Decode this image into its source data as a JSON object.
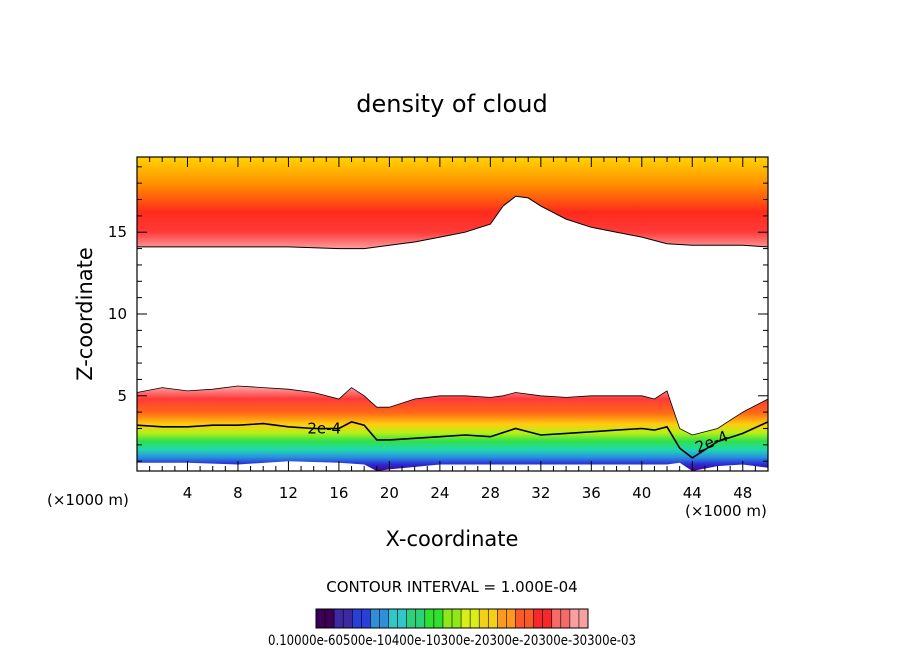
{
  "chart_data": {
    "type": "contour",
    "title": "density of cloud",
    "xlabel": "X-coordinate",
    "ylabel": "Z-coordinate",
    "x_unit_left": "(×1000 m)",
    "x_unit_right": "(×1000 m)",
    "xlim": [
      0,
      50
    ],
    "ylim": [
      0.4,
      19.6
    ],
    "x_ticks": [
      4,
      8,
      12,
      16,
      20,
      24,
      28,
      32,
      36,
      40,
      44,
      48
    ],
    "y_ticks": [
      5,
      10,
      15
    ],
    "contour_label": "2e-4",
    "contour_interval_text": "CONTOUR INTERVAL = 1.000E-04",
    "colorbar_labels_text": "0.10000e-60500e-10400e-10300e-20300e-20300e-30300e-03",
    "top_layer_lower_boundary": {
      "x": [
        0,
        4,
        8,
        12,
        16,
        18,
        20,
        22,
        24,
        26,
        28,
        29,
        30,
        31,
        32,
        34,
        36,
        38,
        40,
        42,
        44,
        46,
        48,
        50
      ],
      "z": [
        14.1,
        14.1,
        14.1,
        14.1,
        14.0,
        14.0,
        14.2,
        14.4,
        14.7,
        15.0,
        15.5,
        16.6,
        17.2,
        17.1,
        16.6,
        15.8,
        15.3,
        15.0,
        14.7,
        14.3,
        14.2,
        14.2,
        14.2,
        14.1
      ]
    },
    "lower_layer_top": {
      "x": [
        0,
        2,
        4,
        6,
        8,
        10,
        12,
        14,
        16,
        17,
        18,
        19,
        20,
        22,
        24,
        26,
        28,
        29,
        30,
        32,
        34,
        36,
        38,
        40,
        41,
        42,
        43,
        44,
        46,
        48,
        50
      ],
      "z": [
        5.2,
        5.5,
        5.3,
        5.4,
        5.6,
        5.5,
        5.4,
        5.2,
        4.8,
        5.5,
        5.0,
        4.3,
        4.3,
        4.8,
        5.0,
        5.0,
        4.9,
        5.0,
        5.2,
        5.0,
        4.9,
        5.0,
        5.0,
        5.0,
        4.8,
        5.3,
        3.0,
        2.6,
        3.0,
        4.0,
        4.8
      ]
    },
    "contour_2e4": {
      "x": [
        0,
        2,
        4,
        6,
        8,
        10,
        12,
        14,
        16,
        17,
        18,
        19,
        20,
        22,
        24,
        26,
        28,
        30,
        32,
        34,
        36,
        38,
        40,
        41,
        42,
        43,
        44,
        46,
        48,
        50
      ],
      "z": [
        3.2,
        3.1,
        3.1,
        3.2,
        3.2,
        3.3,
        3.1,
        3.0,
        3.0,
        3.4,
        3.2,
        2.3,
        2.3,
        2.4,
        2.5,
        2.6,
        2.5,
        3.0,
        2.6,
        2.7,
        2.8,
        2.9,
        3.0,
        2.9,
        3.1,
        1.8,
        1.2,
        2.2,
        2.7,
        3.4
      ]
    },
    "lower_layer_bottom": {
      "x": [
        0,
        4,
        8,
        12,
        16,
        18,
        19,
        20,
        24,
        28,
        32,
        36,
        40,
        42,
        43,
        44,
        46,
        48,
        50
      ],
      "z": [
        0.9,
        0.9,
        0.8,
        1.0,
        0.9,
        0.8,
        0.4,
        0.5,
        0.8,
        0.8,
        0.8,
        0.8,
        0.8,
        0.8,
        0.9,
        0.4,
        0.7,
        0.8,
        0.6
      ]
    },
    "colorbar_colors": [
      "#3a0055",
      "#3d2aa0",
      "#2a3fd8",
      "#2f8fd8",
      "#33c6c8",
      "#2ed07a",
      "#30e030",
      "#8ee81a",
      "#d7ef14",
      "#f4d018",
      "#fc9a20",
      "#fa5a2a",
      "#f42a2a",
      "#f66a6a",
      "#f8a0a0"
    ]
  }
}
